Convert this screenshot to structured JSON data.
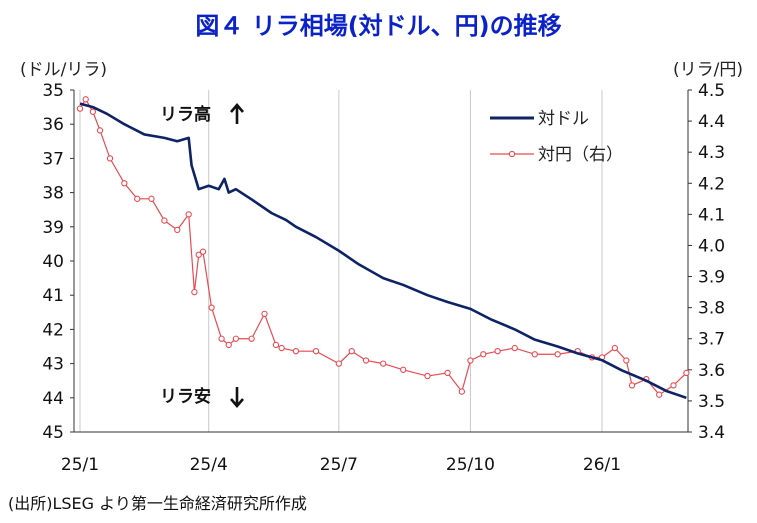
{
  "title": "図４ リラ相場(対ドル、円)の推移",
  "unit_left": "(ドル/リラ)",
  "unit_right": "(リラ/円)",
  "source": "(出所)LSEG より第一生命経済研究所作成",
  "colors": {
    "usd": "#0d2366",
    "jpy": "#e84a52",
    "title": "#0b22c9"
  },
  "chart_data": {
    "type": "line",
    "x_ticks": [
      "25/1",
      "25/4",
      "25/7",
      "25/10",
      "26/1"
    ],
    "left_axis": {
      "ticks": [
        "35",
        "36",
        "37",
        "38",
        "39",
        "40",
        "41",
        "42",
        "43",
        "44",
        "45"
      ],
      "range": [
        35,
        45
      ],
      "inverted": true
    },
    "right_axis": {
      "ticks": [
        "4.5",
        "4.4",
        "4.3",
        "4.2",
        "4.1",
        "4.0",
        "3.9",
        "3.8",
        "3.7",
        "3.6",
        "3.5",
        "3.4"
      ],
      "range": [
        3.4,
        4.5
      ]
    },
    "annotations": {
      "up": "リラ高",
      "down": "リラ安"
    },
    "grid": "vertical",
    "legend_position": "top-right",
    "series": [
      {
        "name": "対ドル",
        "axis": "left",
        "style": "line",
        "x": [
          "2025-01-01",
          "2025-01-10",
          "2025-01-20",
          "2025-02-01",
          "2025-02-15",
          "2025-03-01",
          "2025-03-10",
          "2025-03-18",
          "2025-03-20",
          "2025-03-25",
          "2025-04-01",
          "2025-04-08",
          "2025-04-12",
          "2025-04-15",
          "2025-04-20",
          "2025-05-01",
          "2025-05-15",
          "2025-05-25",
          "2025-06-01",
          "2025-06-15",
          "2025-07-01",
          "2025-07-15",
          "2025-08-01",
          "2025-08-15",
          "2025-09-01",
          "2025-09-15",
          "2025-10-01",
          "2025-10-15",
          "2025-11-01",
          "2025-11-15",
          "2025-12-01",
          "2025-12-15",
          "2026-01-01",
          "2026-01-15",
          "2026-02-01",
          "2026-02-15",
          "2026-03-01"
        ],
        "values": [
          35.4,
          35.5,
          35.7,
          36.0,
          36.3,
          36.4,
          36.5,
          36.4,
          37.2,
          37.9,
          37.8,
          37.9,
          37.6,
          38.0,
          37.9,
          38.2,
          38.6,
          38.8,
          39.0,
          39.3,
          39.7,
          40.1,
          40.5,
          40.7,
          41.0,
          41.2,
          41.4,
          41.7,
          42.0,
          42.3,
          42.5,
          42.7,
          42.9,
          43.2,
          43.5,
          43.8,
          44.0
        ]
      },
      {
        "name": "対円（右）",
        "axis": "right",
        "style": "line-marker",
        "x": [
          "2025-01-01",
          "2025-01-05",
          "2025-01-10",
          "2025-01-15",
          "2025-01-22",
          "2025-02-01",
          "2025-02-10",
          "2025-02-20",
          "2025-03-01",
          "2025-03-10",
          "2025-03-18",
          "2025-03-22",
          "2025-03-25",
          "2025-03-28",
          "2025-04-03",
          "2025-04-10",
          "2025-04-15",
          "2025-04-20",
          "2025-05-01",
          "2025-05-10",
          "2025-05-18",
          "2025-05-22",
          "2025-06-01",
          "2025-06-15",
          "2025-07-01",
          "2025-07-10",
          "2025-07-20",
          "2025-08-01",
          "2025-08-15",
          "2025-09-01",
          "2025-09-15",
          "2025-09-25",
          "2025-10-01",
          "2025-10-10",
          "2025-10-20",
          "2025-11-01",
          "2025-11-15",
          "2025-12-01",
          "2025-12-15",
          "2025-12-25",
          "2026-01-01",
          "2026-01-10",
          "2026-01-18",
          "2026-01-22",
          "2026-02-01",
          "2026-02-10",
          "2026-02-20",
          "2026-03-01"
        ],
        "values": [
          4.44,
          4.47,
          4.43,
          4.37,
          4.28,
          4.2,
          4.15,
          4.15,
          4.08,
          4.05,
          4.1,
          3.85,
          3.97,
          3.98,
          3.8,
          3.7,
          3.68,
          3.7,
          3.7,
          3.78,
          3.68,
          3.67,
          3.66,
          3.66,
          3.62,
          3.66,
          3.63,
          3.62,
          3.6,
          3.58,
          3.59,
          3.53,
          3.63,
          3.65,
          3.66,
          3.67,
          3.65,
          3.65,
          3.66,
          3.64,
          3.64,
          3.67,
          3.63,
          3.55,
          3.57,
          3.52,
          3.55,
          3.59
        ]
      }
    ]
  }
}
